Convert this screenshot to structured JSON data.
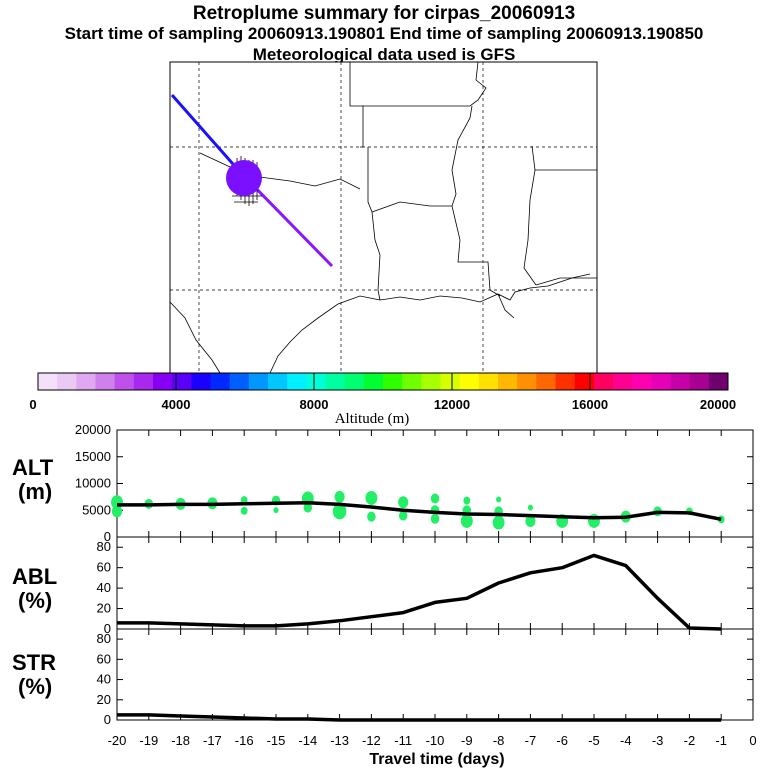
{
  "titles": {
    "main": "Retroplume summary for cirpas_20060913",
    "sampling": "Start time of sampling 20060913.190801     End time of sampling 20060913.190850",
    "met": "Meteorological data used is GFS"
  },
  "colorbar": {
    "label": "Altitude (m)",
    "ticks": [
      "0",
      "4000",
      "8000",
      "12000",
      "16000",
      "20000"
    ],
    "colors": [
      "#f4e0f8",
      "#ecc8f4",
      "#e0a8f0",
      "#d080ec",
      "#c050ec",
      "#a828f0",
      "#8800f4",
      "#5a00f8",
      "#1c00ff",
      "#0028ff",
      "#0060ff",
      "#0098ff",
      "#00c8ff",
      "#00f0ff",
      "#00ffd8",
      "#00ffa0",
      "#00ff70",
      "#00ff30",
      "#30ff00",
      "#70ff00",
      "#a8ff00",
      "#d8ff00",
      "#ffff00",
      "#ffe000",
      "#ffb800",
      "#ff9000",
      "#ff6800",
      "#ff3000",
      "#ff0000",
      "#ff0060",
      "#ff0090",
      "#ff00b0",
      "#e800b8",
      "#c800a8",
      "#a80090",
      "#700070"
    ]
  },
  "map": {
    "trajectory_colors": [
      "#1a10ff",
      "#8a18ff"
    ],
    "source_color": "#7a10ff"
  },
  "xaxis": {
    "label": "Travel time (days)",
    "ticks": [
      "-20",
      "-19",
      "-18",
      "-17",
      "-16",
      "-15",
      "-14",
      "-13",
      "-12",
      "-11",
      "-10",
      "-9",
      "-8",
      "-7",
      "-6",
      "-5",
      "-4",
      "-3",
      "-2",
      "-1",
      "0"
    ]
  },
  "chart_data": [
    {
      "type": "line",
      "panel_label_1": "ALT",
      "panel_label_2": "(m)",
      "ylabel": "ALT (m)",
      "ylim": [
        0,
        20000
      ],
      "yticks": [
        "20000",
        "15000",
        "10000",
        "5000",
        "0"
      ],
      "x": [
        -20,
        -19,
        -18,
        -17,
        -16,
        -15,
        -14,
        -13,
        -12,
        -11,
        -10,
        -9,
        -8,
        -7,
        -6,
        -5,
        -4,
        -3,
        -2,
        -1
      ],
      "values": [
        6000,
        6000,
        6100,
        6100,
        6200,
        6300,
        6400,
        6100,
        5600,
        5000,
        4600,
        4300,
        4200,
        4000,
        3800,
        3600,
        3700,
        4600,
        4500,
        3300
      ],
      "scatter_color": "#22ee66",
      "scatter": [
        [
          -20,
          6500,
          7
        ],
        [
          -20,
          4800,
          6
        ],
        [
          -19,
          6200,
          5
        ],
        [
          -18,
          6200,
          6
        ],
        [
          -17,
          6300,
          6
        ],
        [
          -16,
          6900,
          4
        ],
        [
          -16,
          4900,
          4
        ],
        [
          -15,
          6800,
          5
        ],
        [
          -15,
          5000,
          3
        ],
        [
          -14,
          7200,
          7
        ],
        [
          -14,
          5500,
          5
        ],
        [
          -13,
          7500,
          6
        ],
        [
          -13,
          4800,
          8
        ],
        [
          -12,
          7300,
          7
        ],
        [
          -12,
          3800,
          5
        ],
        [
          -11,
          6500,
          6
        ],
        [
          -11,
          4000,
          5
        ],
        [
          -10,
          7200,
          5
        ],
        [
          -10,
          5000,
          5
        ],
        [
          -10,
          3400,
          5
        ],
        [
          -9,
          6800,
          4
        ],
        [
          -9,
          5000,
          5
        ],
        [
          -9,
          3000,
          7
        ],
        [
          -8,
          7000,
          3
        ],
        [
          -8,
          4800,
          5
        ],
        [
          -8,
          2700,
          7
        ],
        [
          -7,
          5500,
          3
        ],
        [
          -7,
          3000,
          6
        ],
        [
          -6,
          3000,
          7
        ],
        [
          -5,
          3000,
          7
        ],
        [
          -4,
          3800,
          6
        ],
        [
          -3,
          4800,
          5
        ],
        [
          -2,
          4800,
          4
        ],
        [
          -1,
          3300,
          4
        ]
      ]
    },
    {
      "type": "line",
      "panel_label_1": "ABL",
      "panel_label_2": "(%)",
      "ylabel": "ABL (%)",
      "ylim": [
        0,
        90
      ],
      "yticks": [
        "80",
        "60",
        "40",
        "20",
        "0"
      ],
      "x": [
        -20,
        -19,
        -18,
        -17,
        -16,
        -15,
        -14,
        -13,
        -12,
        -11,
        -10,
        -9,
        -8,
        -7,
        -6,
        -5,
        -4,
        -3,
        -2,
        -1
      ],
      "values": [
        6,
        6,
        5,
        4,
        3,
        3,
        5,
        8,
        12,
        16,
        26,
        30,
        45,
        55,
        60,
        72,
        62,
        30,
        1,
        0
      ]
    },
    {
      "type": "line",
      "panel_label_1": "STR",
      "panel_label_2": "(%)",
      "ylabel": "STR (%)",
      "ylim": [
        0,
        90
      ],
      "yticks": [
        "80",
        "60",
        "40",
        "20",
        "0"
      ],
      "x": [
        -20,
        -19,
        -18,
        -17,
        -16,
        -15,
        -14,
        -13,
        -12,
        -11,
        -10,
        -9,
        -8,
        -7,
        -6,
        -5,
        -4,
        -3,
        -2,
        -1
      ],
      "values": [
        5,
        5,
        4,
        3,
        2,
        1,
        1,
        0,
        0,
        0,
        0,
        0,
        0,
        0,
        0,
        0,
        0,
        0,
        0,
        0
      ]
    }
  ]
}
